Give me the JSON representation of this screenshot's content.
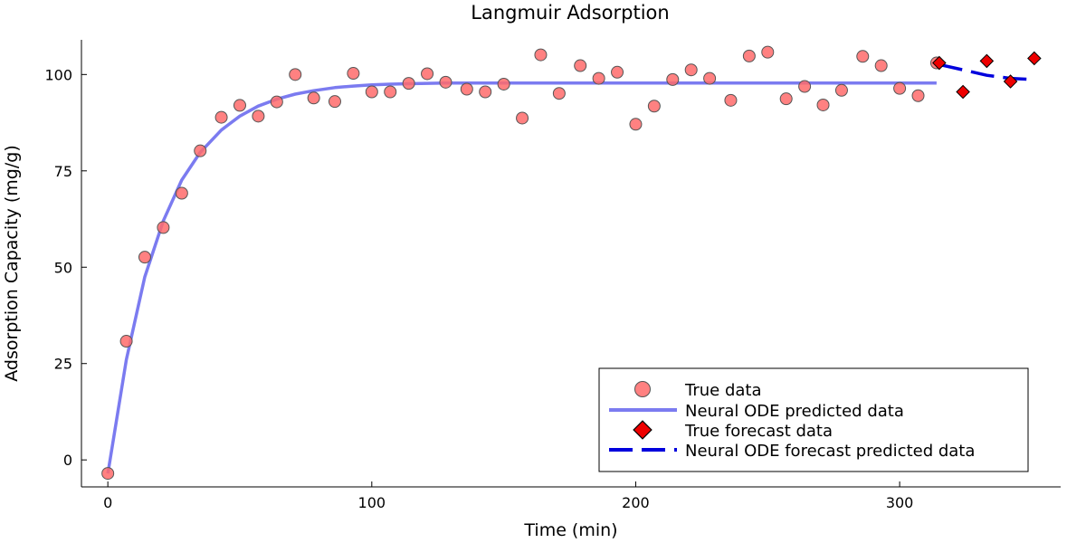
{
  "chart_data": {
    "type": "scatter",
    "title": "Langmuir Adsorption",
    "xlabel": "Time (min)",
    "ylabel": "Adsorption Capacity (mg/g)",
    "xlim": [
      -10,
      361
    ],
    "ylim": [
      -7,
      109
    ],
    "xticks": [
      0,
      100,
      200,
      300
    ],
    "xtick_labels": [
      "0",
      "100",
      "200",
      "300"
    ],
    "yticks": [
      0,
      25,
      50,
      75,
      100
    ],
    "ytick_labels": [
      "0",
      "25",
      "50",
      "75",
      "100"
    ],
    "grid": false,
    "legend_position": "bottom-right",
    "colors": {
      "true_data": "#ff6b6b",
      "predicted": "#7b7bf0",
      "forecast_marker": "#ee0000",
      "forecast_line": "#0000dd"
    },
    "series": [
      {
        "name": "True data",
        "kind": "scatter",
        "x": [
          0,
          7,
          14,
          21,
          28,
          35,
          43,
          50,
          57,
          64,
          71,
          78,
          86,
          93,
          100,
          107,
          114,
          121,
          128,
          136,
          143,
          150,
          157,
          164,
          171,
          179,
          186,
          193,
          200,
          207,
          214,
          221,
          228,
          236,
          243,
          250,
          257,
          264,
          271,
          278,
          286,
          293,
          300,
          307,
          314
        ],
        "y": [
          -3.5,
          30.8,
          52.6,
          60.3,
          69.2,
          80.2,
          88.9,
          92.0,
          89.2,
          92.9,
          100.0,
          93.9,
          93.0,
          100.3,
          95.5,
          95.5,
          97.7,
          100.2,
          98.0,
          96.2,
          95.5,
          97.5,
          88.7,
          105.1,
          95.1,
          102.3,
          99.0,
          100.6,
          87.1,
          91.8,
          98.7,
          101.2,
          99.0,
          93.3,
          104.8,
          105.8,
          93.7,
          96.9,
          92.1,
          95.9,
          104.7,
          102.3,
          96.4,
          94.5,
          103.0
        ]
      },
      {
        "name": "Neural ODE predicted data",
        "kind": "line",
        "x": [
          0,
          7,
          14,
          21,
          28,
          35,
          43,
          50,
          57,
          64,
          71,
          78,
          86,
          93,
          100,
          107,
          114,
          121,
          128,
          150,
          200,
          250,
          300,
          314
        ],
        "y": [
          -3.5,
          26.0,
          47.5,
          62.0,
          72.6,
          79.8,
          85.6,
          89.2,
          91.8,
          93.6,
          94.9,
          95.8,
          96.6,
          97.0,
          97.3,
          97.5,
          97.6,
          97.7,
          97.8,
          97.8,
          97.8,
          97.8,
          97.8,
          97.8
        ]
      },
      {
        "name": "True forecast data",
        "kind": "scatter",
        "x": [
          315,
          324,
          333,
          342,
          351
        ],
        "y": [
          103.0,
          95.5,
          103.5,
          98.2,
          104.2
        ]
      },
      {
        "name": "Neural ODE forecast predicted data",
        "kind": "line",
        "x": [
          315,
          324,
          333,
          342,
          351
        ],
        "y": [
          102.6,
          101.2,
          99.8,
          99.0,
          98.7
        ]
      }
    ]
  }
}
